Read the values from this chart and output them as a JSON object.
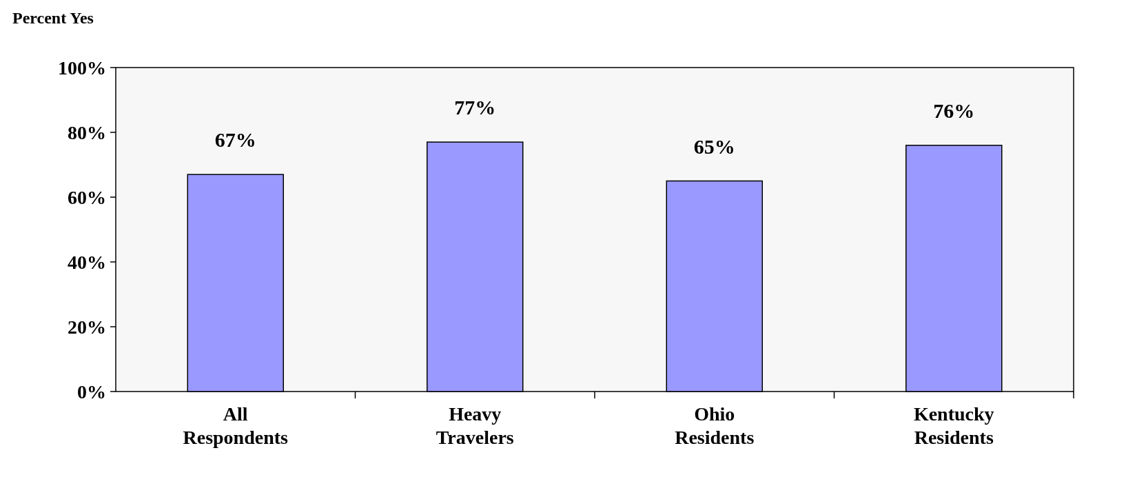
{
  "chart_data": {
    "type": "bar",
    "ylabel": "Percent Yes",
    "categories": [
      "All Respondents",
      "Heavy Travelers",
      "Ohio Residents",
      "Kentucky Residents"
    ],
    "values": [
      67,
      77,
      65,
      76
    ],
    "color": "#9999ff",
    "value_labels": [
      "67%",
      "77%",
      "65%",
      "76%"
    ],
    "ylim": [
      0,
      100
    ],
    "yticks": [
      {
        "value": 0,
        "label": "0%"
      },
      {
        "value": 20,
        "label": "20%"
      },
      {
        "value": 40,
        "label": "40%"
      },
      {
        "value": 60,
        "label": "60%"
      },
      {
        "value": 80,
        "label": "80%"
      },
      {
        "value": 100,
        "label": "100%"
      }
    ],
    "grid": false
  }
}
